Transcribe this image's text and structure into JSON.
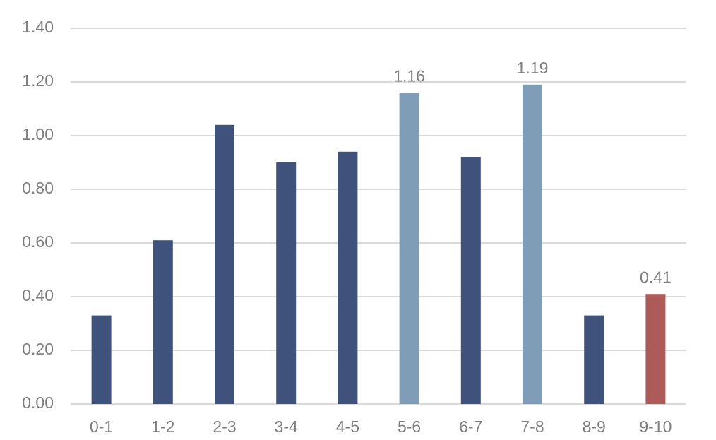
{
  "chart_data": {
    "type": "bar",
    "categories": [
      "0-1",
      "1-2",
      "2-3",
      "3-4",
      "4-5",
      "5-6",
      "6-7",
      "7-8",
      "8-9",
      "9-10"
    ],
    "values": [
      0.33,
      0.61,
      1.04,
      0.9,
      0.94,
      1.16,
      0.92,
      1.19,
      0.33,
      0.41
    ],
    "value_labels": [
      null,
      null,
      null,
      null,
      null,
      "1.16",
      null,
      "1.19",
      null,
      "0.41"
    ],
    "colors": [
      "#3e527b",
      "#3e527b",
      "#3e527b",
      "#3e527b",
      "#3e527b",
      "#809db7",
      "#3e527b",
      "#809db7",
      "#3e527b",
      "#ac5b59"
    ],
    "ylim": [
      0,
      1.4
    ],
    "yticks": [
      {
        "value": 0,
        "label": "0.00"
      },
      {
        "value": 0.2,
        "label": "0.20"
      },
      {
        "value": 0.4,
        "label": "0.40"
      },
      {
        "value": 0.6,
        "label": "0.60"
      },
      {
        "value": 0.8,
        "label": "0.80"
      },
      {
        "value": 1.0,
        "label": "1.00"
      },
      {
        "value": 1.2,
        "label": "1.20"
      },
      {
        "value": 1.4,
        "label": "1.40"
      }
    ],
    "grid": true
  }
}
